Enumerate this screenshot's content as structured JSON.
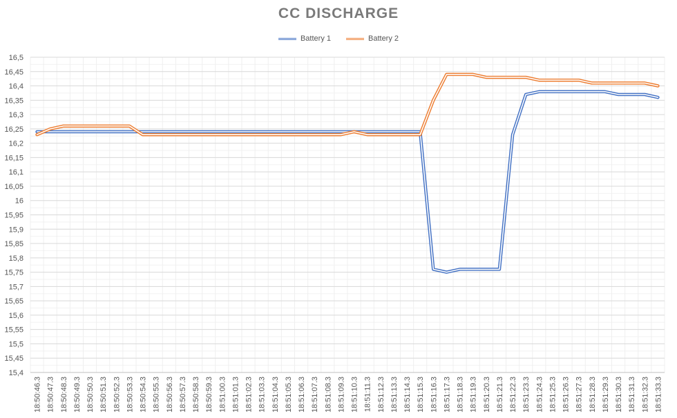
{
  "chart_data": {
    "type": "line",
    "title": "CC DISCHARGE",
    "xlabel": "",
    "ylabel": "",
    "ylim": [
      15.4,
      16.5
    ],
    "ystep": 0.05,
    "yticks": [
      "15,4",
      "15,45",
      "15,5",
      "15,55",
      "15,6",
      "15,65",
      "15,7",
      "15,75",
      "15,8",
      "15,85",
      "15,9",
      "15,95",
      "16",
      "16,05",
      "16,1",
      "16,15",
      "16,2",
      "16,25",
      "16,3",
      "16,35",
      "16,4",
      "16,45",
      "16,5"
    ],
    "grid": true,
    "legend_position": "top-center",
    "x": [
      "18:50:46.3",
      "18:50:47.3",
      "18:50:48.3",
      "18:50:49.3",
      "18:50:50.3",
      "18:50:51.3",
      "18:50:52.3",
      "18:50:53.3",
      "18:50:54.3",
      "18:50:55.3",
      "18:50:56.3",
      "18:50:57.3",
      "18:50:58.3",
      "18:50:59.3",
      "18:51:00.3",
      "18:51:01.3",
      "18:51:02.3",
      "18:51:03.3",
      "18:51:04.3",
      "18:51:05.3",
      "18:51:06.3",
      "18:51:07.3",
      "18:51:08.3",
      "18:51:09.3",
      "18:51:10.3",
      "18:51:11.3",
      "18:51:12.3",
      "18:51:13.3",
      "18:51:14.3",
      "18:51:15.3",
      "18:51:16.3",
      "18:51:17.3",
      "18:51:18.3",
      "18:51:19.3",
      "18:51:20.3",
      "18:51:21.3",
      "18:51:22.3",
      "18:51:23.3",
      "18:51:24.3",
      "18:51:25.3",
      "18:51:26.3",
      "18:51:27.3",
      "18:51:28.3",
      "18:51:29.3",
      "18:51:30.3",
      "18:51:31.3",
      "18:51:32.3",
      "18:51:33.3"
    ],
    "series": [
      {
        "name": "Battery 1",
        "color": "#4472C4",
        "values": [
          16.24,
          16.24,
          16.24,
          16.24,
          16.24,
          16.24,
          16.24,
          16.24,
          16.24,
          16.24,
          16.24,
          16.24,
          16.24,
          16.24,
          16.24,
          16.24,
          16.24,
          16.24,
          16.24,
          16.24,
          16.24,
          16.24,
          16.24,
          16.24,
          16.24,
          16.24,
          16.24,
          16.24,
          16.24,
          16.24,
          15.76,
          15.75,
          15.76,
          15.76,
          15.76,
          15.76,
          16.23,
          16.37,
          16.38,
          16.38,
          16.38,
          16.38,
          16.38,
          16.38,
          16.37,
          16.37,
          16.37,
          16.36
        ]
      },
      {
        "name": "Battery 2",
        "color": "#ED7D31",
        "values": [
          16.23,
          16.25,
          16.26,
          16.26,
          16.26,
          16.26,
          16.26,
          16.26,
          16.23,
          16.23,
          16.23,
          16.23,
          16.23,
          16.23,
          16.23,
          16.23,
          16.23,
          16.23,
          16.23,
          16.23,
          16.23,
          16.23,
          16.23,
          16.23,
          16.24,
          16.23,
          16.23,
          16.23,
          16.23,
          16.23,
          16.35,
          16.44,
          16.44,
          16.44,
          16.43,
          16.43,
          16.43,
          16.43,
          16.42,
          16.42,
          16.42,
          16.42,
          16.41,
          16.41,
          16.41,
          16.41,
          16.41,
          16.4
        ]
      }
    ]
  }
}
